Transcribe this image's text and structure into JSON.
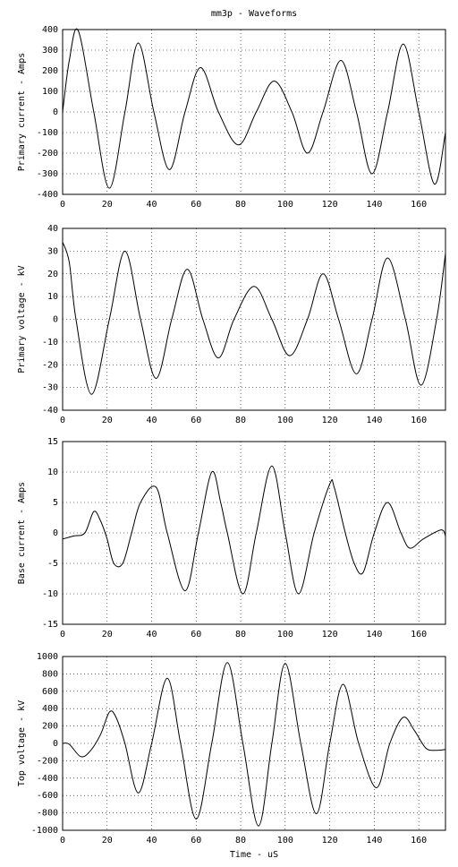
{
  "chart_data": [
    {
      "type": "line",
      "title": "mm3p - Waveforms",
      "y_label": "Primary current - Amps",
      "x": [
        0,
        3,
        7,
        14,
        21,
        28,
        34,
        41,
        48,
        55,
        62,
        70,
        79,
        87,
        95,
        103,
        110,
        117,
        125,
        132,
        139,
        146,
        153,
        160,
        167,
        172
      ],
      "series": [
        {
          "color": "#000000",
          "values": [
            0,
            250,
            395,
            0,
            -370,
            0,
            335,
            0,
            -280,
            0,
            215,
            0,
            -160,
            0,
            150,
            0,
            -200,
            0,
            250,
            0,
            -300,
            0,
            330,
            0,
            -350,
            -100
          ]
        }
      ],
      "xlim": [
        0,
        172
      ],
      "xticks": [
        0,
        20,
        40,
        60,
        80,
        100,
        120,
        140,
        160
      ],
      "ylim": [
        -400,
        400
      ],
      "yticks": [
        -400,
        -300,
        -200,
        -100,
        0,
        100,
        200,
        300,
        400
      ],
      "grid": true
    },
    {
      "type": "line",
      "y_label": "Primary voltage - kV",
      "x": [
        0,
        3,
        6,
        13,
        21,
        28,
        35,
        42,
        49,
        56,
        63,
        70,
        77,
        86,
        94,
        102,
        110,
        117,
        124,
        132,
        139,
        146,
        154,
        161,
        168,
        172
      ],
      "series": [
        {
          "color": "#000000",
          "values": [
            34,
            25,
            0,
            -33,
            0,
            30,
            0,
            -26,
            0,
            22,
            0,
            -17,
            0,
            14.5,
            0,
            -16,
            0,
            20,
            0,
            -24,
            0,
            27,
            0,
            -29,
            0,
            29
          ]
        }
      ],
      "xlim": [
        0,
        172
      ],
      "xticks": [
        0,
        20,
        40,
        60,
        80,
        100,
        120,
        140,
        160
      ],
      "ylim": [
        -40,
        40
      ],
      "yticks": [
        -40,
        -30,
        -20,
        -10,
        0,
        10,
        20,
        30,
        40
      ],
      "grid": true
    },
    {
      "type": "line",
      "y_label": "Base current - Amps",
      "x": [
        0,
        5,
        10,
        14,
        17,
        20,
        23,
        27,
        31,
        35,
        42,
        47,
        55,
        61,
        67,
        71,
        74,
        81,
        87,
        94,
        100,
        106,
        113,
        120,
        122,
        127,
        131,
        135,
        140,
        146,
        152,
        156,
        162,
        170,
        172
      ],
      "series": [
        {
          "color": "#000000",
          "values": [
            -1,
            -0.5,
            0,
            3.5,
            2,
            -1,
            -5,
            -5,
            0,
            5,
            7.5,
            0,
            -9.5,
            0,
            10,
            5,
            0,
            -10,
            0,
            11,
            0,
            -10,
            0,
            8,
            7.5,
            0,
            -5,
            -6.5,
            0,
            5,
            0,
            -2.5,
            -1,
            0.5,
            -0.5
          ]
        }
      ],
      "xlim": [
        0,
        172
      ],
      "xticks": [
        0,
        20,
        40,
        60,
        80,
        100,
        120,
        140,
        160
      ],
      "ylim": [
        -15,
        15
      ],
      "yticks": [
        -15,
        -10,
        -5,
        0,
        5,
        10,
        15
      ],
      "grid": true
    },
    {
      "type": "line",
      "y_label": "Top voltage - kV",
      "x_label": "Time - uS",
      "x": [
        0,
        3,
        8,
        12,
        17,
        21,
        24,
        28,
        34,
        40,
        47,
        53,
        60,
        67,
        74,
        81,
        88,
        94,
        100,
        107,
        114,
        120,
        126,
        133,
        141,
        147,
        153,
        158,
        163,
        167,
        172
      ],
      "series": [
        {
          "color": "#000000",
          "values": [
            0,
            -10,
            -150,
            -100,
            100,
            360,
            300,
            0,
            -570,
            0,
            750,
            0,
            -870,
            0,
            930,
            0,
            -950,
            0,
            920,
            0,
            -810,
            0,
            680,
            0,
            -510,
            0,
            300,
            150,
            -50,
            -80,
            -70
          ]
        }
      ],
      "xlim": [
        0,
        172
      ],
      "xticks": [
        0,
        20,
        40,
        60,
        80,
        100,
        120,
        140,
        160
      ],
      "ylim": [
        -1000,
        1000
      ],
      "yticks": [
        -1000,
        -800,
        -600,
        -400,
        -200,
        0,
        200,
        400,
        600,
        800,
        1000
      ],
      "grid": true
    }
  ]
}
